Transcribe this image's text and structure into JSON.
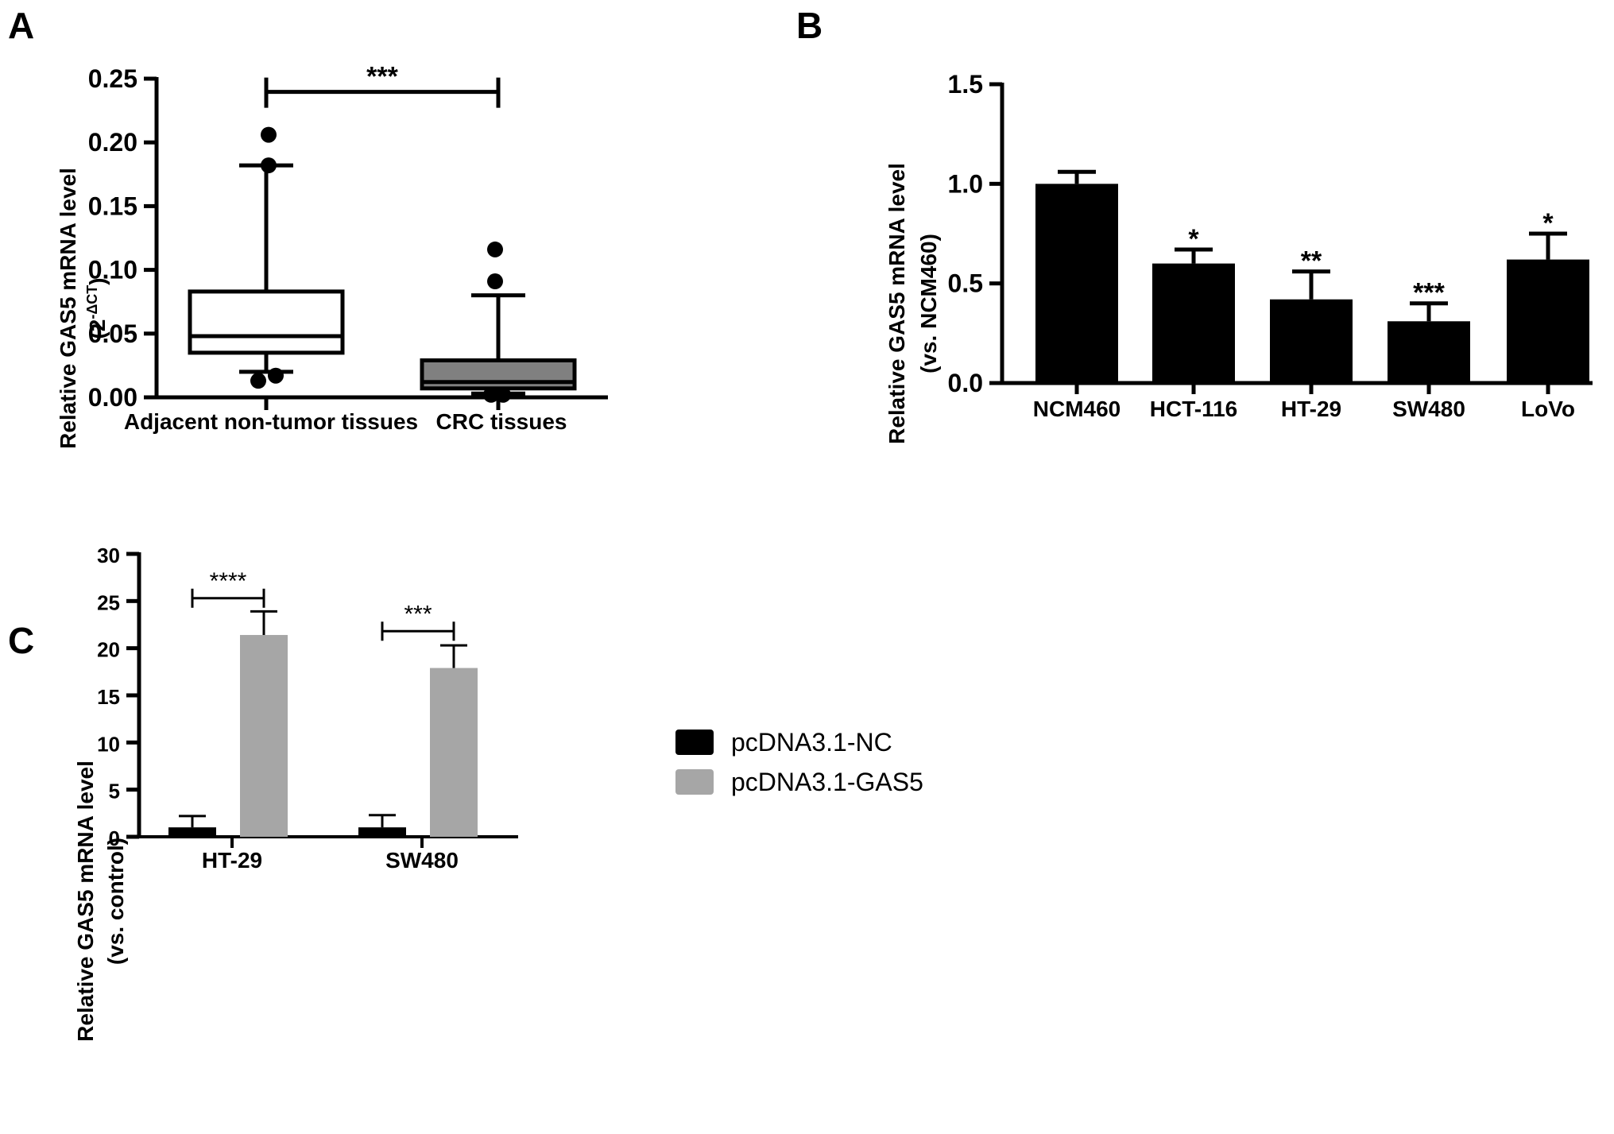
{
  "figure": {
    "colors": {
      "ink": "#000000",
      "box_fill_a": "#ffffff",
      "box_fill_b": "#808080",
      "bar_black": "#000000",
      "bar_gray": "#a6a6a6"
    }
  },
  "panels": [
    {
      "id": "A",
      "letter": "A"
    },
    {
      "id": "B",
      "letter": "B"
    },
    {
      "id": "C",
      "letter": "C"
    }
  ],
  "chart_data": [
    {
      "panel": "A",
      "type": "box",
      "title": "",
      "ylabel": "Relative GAS5 mRNA level",
      "ylabel_line2": "(2",
      "ylabel_sup": "-ΔCT",
      "ylabel_close": ")",
      "ylim": [
        0,
        0.25
      ],
      "yticks": [
        0.0,
        0.05,
        0.1,
        0.15,
        0.2,
        0.25
      ],
      "ytick_labels": [
        "0.00",
        "0.05",
        "0.10",
        "0.15",
        "0.20",
        "0.25"
      ],
      "categories": [
        "Adjacent non-tumor tissues",
        "CRC tissues"
      ],
      "boxes": [
        {
          "category": "Adjacent non-tumor tissues",
          "fill": "#ffffff",
          "whisker_low": 0.02,
          "q1": 0.035,
          "median": 0.048,
          "q3": 0.083,
          "whisker_high": 0.182,
          "outliers": [
            0.206,
            0.182,
            0.017,
            0.013
          ]
        },
        {
          "category": "CRC tissues",
          "fill": "#808080",
          "whisker_low": 0.003,
          "q1": 0.007,
          "median": 0.012,
          "q3": 0.029,
          "whisker_high": 0.08,
          "outliers": [
            0.116,
            0.091,
            0.002,
            0.002
          ]
        }
      ],
      "significance": [
        {
          "between": [
            0,
            1
          ],
          "label": "***",
          "y": 0.244
        }
      ]
    },
    {
      "panel": "B",
      "type": "bar",
      "title": "",
      "ylabel": "Relative GAS5 mRNA level",
      "ylabel_line2": "(vs. NCM460)",
      "ylim": [
        0,
        1.5
      ],
      "yticks": [
        0.0,
        0.5,
        1.0,
        1.5
      ],
      "ytick_labels": [
        "0.0",
        "0.5",
        "1.0",
        "1.5"
      ],
      "categories": [
        "NCM460",
        "HCT-116",
        "HT-29",
        "SW480",
        "LoVo"
      ],
      "values": [
        1.0,
        0.6,
        0.42,
        0.31,
        0.62
      ],
      "errors": [
        0.06,
        0.07,
        0.14,
        0.09,
        0.13
      ],
      "annotations": [
        "",
        "*",
        "**",
        "***",
        "*"
      ]
    },
    {
      "panel": "C",
      "type": "bar",
      "title": "",
      "ylabel": "Relative GAS5 mRNA level",
      "ylabel_line2": "(vs. control)",
      "ylim": [
        0,
        30
      ],
      "yticks": [
        0,
        5,
        10,
        15,
        20,
        25,
        30
      ],
      "ytick_labels": [
        "0",
        "5",
        "10",
        "15",
        "20",
        "25",
        "30"
      ],
      "categories": [
        "HT-29",
        "SW480"
      ],
      "series": [
        {
          "name": "pcDNA3.1-NC",
          "color": "#000000",
          "values": [
            1.0,
            1.0
          ],
          "errors": [
            1.2,
            1.3
          ]
        },
        {
          "name": "pcDNA3.1-GAS5",
          "color": "#a6a6a6",
          "values": [
            21.4,
            17.9
          ],
          "errors": [
            2.5,
            2.4
          ]
        }
      ],
      "significance": [
        {
          "category": 0,
          "label": "****",
          "y": 25.3
        },
        {
          "category": 1,
          "label": "***",
          "y": 21.8
        }
      ],
      "legend_position": "top-right"
    }
  ]
}
